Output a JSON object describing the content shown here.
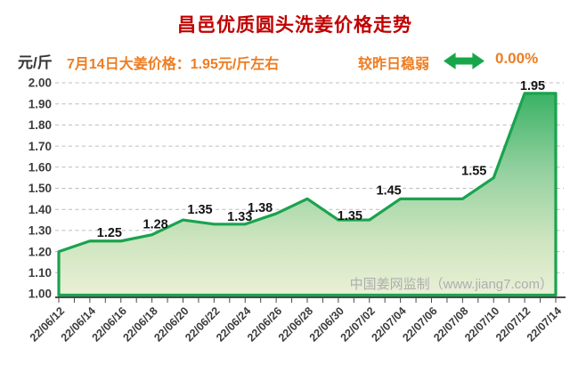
{
  "title": "昌邑优质圆头洗姜价格走势",
  "header": {
    "unit_label": "元/斤",
    "price_note": "7月14日大姜价格：1.95元/斤左右",
    "trend_label": "较昨日稳弱",
    "trend_icon": "left-right-arrow-icon",
    "trend_change_pct": "0.00%"
  },
  "watermark": "中国姜网监制（www.jiang7.com）",
  "colors": {
    "title_red": "#c00000",
    "accent_orange": "#ed7d22",
    "line_green": "#1aa34e",
    "arrow_green": "#17a74a",
    "fill_top_green": "#2eae5d",
    "fill_mid_green": "#95d1a0",
    "fill_low_green": "#cfe5c0",
    "fill_bottom_green": "#e9f0d6",
    "grid_gray": "#bcbcbc",
    "axis_dark": "#4a4a4a",
    "tick_label": "#3c3c3c",
    "point_label": "#141414",
    "watermark_gray": "#aeaeae"
  },
  "chart_data": {
    "type": "area",
    "title": "昌邑优质圆头洗姜价格走势",
    "ylabel": "元/斤",
    "ylim": [
      1.0,
      2.0
    ],
    "ytick_step": 0.1,
    "ytick_labels": [
      "2.00",
      "1.90",
      "1.80",
      "1.70",
      "1.60",
      "1.50",
      "1.40",
      "1.30",
      "1.20",
      "1.10",
      "1.00"
    ],
    "grid": "horizontal-dashed",
    "legend": "none",
    "x": [
      "22/06/12",
      "22/06/14",
      "22/06/16",
      "22/06/18",
      "22/06/20",
      "22/06/22",
      "22/06/24",
      "22/06/26",
      "22/06/28",
      "22/06/30",
      "22/07/02",
      "22/07/04",
      "22/07/06",
      "22/07/08",
      "22/07/10",
      "22/07/12",
      "22/07/14"
    ],
    "values": [
      1.2,
      1.25,
      1.25,
      1.28,
      1.35,
      1.33,
      1.33,
      1.38,
      1.45,
      1.35,
      1.35,
      1.45,
      1.45,
      1.45,
      1.55,
      1.95,
      1.95
    ],
    "point_labels": [
      {
        "x": "22/06/14",
        "y": 1.25
      },
      {
        "x": "22/06/18",
        "y": 1.28
      },
      {
        "x": "22/06/20",
        "y": 1.35
      },
      {
        "x": "22/06/24",
        "y": 1.33
      },
      {
        "x": "22/06/26",
        "y": 1.38
      },
      {
        "x": "22/06/30",
        "y": 1.35
      },
      {
        "x": "22/07/04",
        "y": 1.45
      },
      {
        "x": "22/07/10",
        "y": 1.55
      },
      {
        "x": "22/07/14",
        "y": 1.95
      }
    ],
    "x_minor_tick_count": 33
  }
}
